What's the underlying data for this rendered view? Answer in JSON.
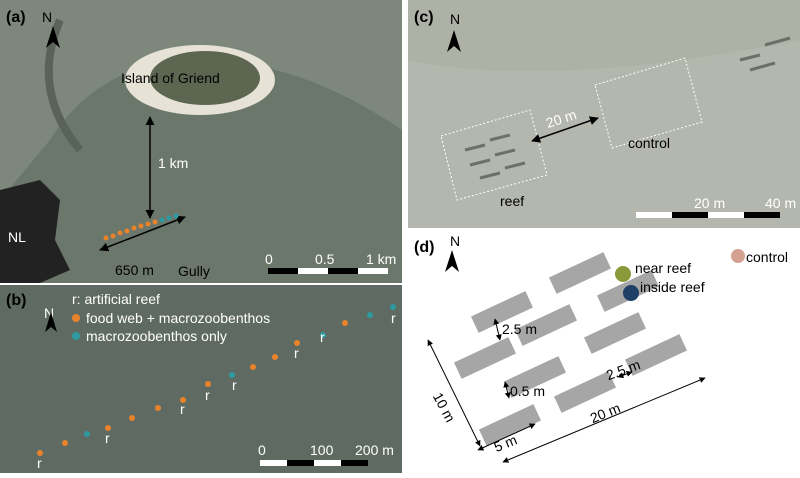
{
  "panel_a": {
    "label": "(a)",
    "north": "N",
    "island": "Island of Griend",
    "distance": "1 km",
    "country": "NL",
    "transect": "650 m",
    "gully": "Gully",
    "scale": [
      "0",
      "0.5",
      "1 km"
    ]
  },
  "panel_b": {
    "label": "(b)",
    "north": "N",
    "legend": [
      "r: artificial reef",
      "food web + macrozoobenthos",
      "macrozoobenthos only"
    ],
    "reef_marks": [
      "r",
      "r",
      "r",
      "r",
      "r",
      "r",
      "r",
      "r"
    ],
    "scale": [
      "0",
      "100",
      "200 m"
    ]
  },
  "panel_c": {
    "label": "(c)",
    "north": "N",
    "distance": "20 m",
    "control": "control",
    "reef": "reef",
    "scale": [
      "20 m",
      "40 m"
    ]
  },
  "panel_d": {
    "label": "(d)",
    "north": "N",
    "legend": [
      "near reef",
      "inside reef",
      "control"
    ],
    "dimensions": [
      "2.5 m",
      "0.5 m",
      "2.5 m",
      "10 m",
      "5 m",
      "20 m"
    ]
  }
}
